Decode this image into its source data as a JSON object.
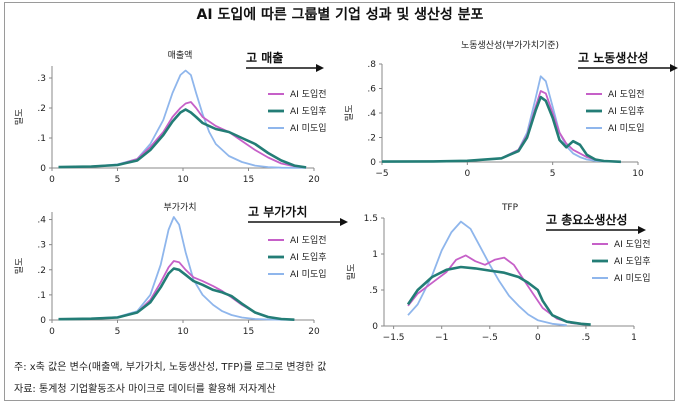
{
  "title": "AI 도입에 따른 그룹별 기업 성과 및 생산성 분포",
  "note": "주: x축 값은 변수(매출액, 부가가치, 노동생산성, TFP)를 로그로 변경한 값",
  "source": "자료: 통계청 기업활동조사 마이크로 데이터를 활용해 저자계산",
  "colors": {
    "ai_before": "#c660c8",
    "ai_after": "#237d76",
    "no_ai": "#8fb6ec"
  },
  "legend": [
    "AI 도입전",
    "AI 도입후",
    "AI 미도입"
  ],
  "chart_data": [
    {
      "type": "line",
      "title": "매출액",
      "direction_label": "고 매출",
      "ylabel": "밀도",
      "xlim": [
        0,
        20
      ],
      "ylim": [
        0,
        0.34
      ],
      "xticks": [
        0,
        5,
        10,
        15,
        20
      ],
      "xtick_labels": [
        "0",
        "5",
        "10",
        "15",
        "20"
      ],
      "yticks": [
        0,
        0.1,
        0.2,
        0.3
      ],
      "ytick_labels": [
        "0",
        ".1",
        ".2",
        ".3"
      ],
      "series": [
        {
          "name": "AI 도입전",
          "color_key": "ai_before",
          "x": [
            0.5,
            3,
            5,
            6.5,
            7.5,
            8.5,
            9.2,
            9.8,
            10.2,
            10.6,
            11,
            11.5,
            12.5,
            13.5,
            14.5,
            15.5,
            16.5,
            17.5,
            18.5,
            19.4
          ],
          "y": [
            0.003,
            0.005,
            0.01,
            0.03,
            0.07,
            0.12,
            0.17,
            0.2,
            0.215,
            0.22,
            0.2,
            0.17,
            0.14,
            0.12,
            0.09,
            0.06,
            0.035,
            0.015,
            0.006,
            0.002
          ]
        },
        {
          "name": "AI 도입후",
          "color_key": "ai_after",
          "x": [
            0.5,
            3,
            5,
            6.5,
            7.5,
            8.5,
            9.2,
            9.8,
            10.2,
            10.6,
            11,
            11.5,
            12.5,
            13.5,
            14.5,
            15.5,
            16.5,
            17.5,
            18.5,
            19.4
          ],
          "y": [
            0.003,
            0.005,
            0.01,
            0.025,
            0.06,
            0.11,
            0.155,
            0.185,
            0.195,
            0.185,
            0.17,
            0.15,
            0.13,
            0.12,
            0.1,
            0.08,
            0.05,
            0.025,
            0.008,
            0.002
          ]
        },
        {
          "name": "AI 미도입",
          "color_key": "no_ai",
          "x": [
            0.5,
            3,
            5,
            6.5,
            7.5,
            8.5,
            9.2,
            9.8,
            10.2,
            10.6,
            11,
            11.5,
            12,
            12.5,
            13.5,
            14.5,
            15.5,
            16.5,
            17.5,
            18.5,
            19.4
          ],
          "y": [
            0.003,
            0.005,
            0.012,
            0.03,
            0.08,
            0.16,
            0.25,
            0.31,
            0.325,
            0.31,
            0.25,
            0.18,
            0.12,
            0.08,
            0.04,
            0.02,
            0.008,
            0.003,
            0.001,
            0.0005,
            0.0002
          ]
        }
      ]
    },
    {
      "type": "line",
      "title": "노동생산성(부가가치기준)",
      "direction_label": "고 노동생산성",
      "ylabel": "밀도",
      "xlim": [
        -5,
        10
      ],
      "ylim": [
        0,
        0.8
      ],
      "xticks": [
        -5,
        0,
        5,
        10
      ],
      "xtick_labels": [
        "−5",
        "0",
        "5",
        "10"
      ],
      "yticks": [
        0,
        0.2,
        0.4,
        0.6,
        0.8
      ],
      "ytick_labels": [
        "0",
        ".2",
        ".4",
        ".6",
        ".8"
      ],
      "series": [
        {
          "name": "AI 도입전",
          "color_key": "ai_before",
          "x": [
            -5,
            -2,
            0,
            2,
            3,
            3.5,
            4,
            4.3,
            4.6,
            5,
            5.4,
            5.8,
            6.2,
            6.6,
            7,
            7.5,
            8,
            9
          ],
          "y": [
            0.003,
            0.005,
            0.01,
            0.03,
            0.1,
            0.22,
            0.45,
            0.58,
            0.56,
            0.4,
            0.24,
            0.15,
            0.1,
            0.07,
            0.04,
            0.02,
            0.008,
            0.002
          ]
        },
        {
          "name": "AI 도입후",
          "color_key": "ai_after",
          "x": [
            -5,
            -2,
            0,
            2,
            3,
            3.5,
            4,
            4.3,
            4.6,
            5,
            5.4,
            5.8,
            6.2,
            6.6,
            7,
            7.5,
            8,
            9
          ],
          "y": [
            0.003,
            0.005,
            0.01,
            0.03,
            0.09,
            0.2,
            0.42,
            0.53,
            0.5,
            0.36,
            0.18,
            0.12,
            0.17,
            0.14,
            0.06,
            0.02,
            0.008,
            0.002
          ]
        },
        {
          "name": "AI 미도입",
          "color_key": "no_ai",
          "x": [
            -5,
            -2,
            0,
            2,
            3,
            3.5,
            4,
            4.3,
            4.6,
            5,
            5.4,
            5.8,
            6.2,
            6.6,
            7,
            7.5,
            8,
            9
          ],
          "y": [
            0.003,
            0.005,
            0.01,
            0.03,
            0.1,
            0.24,
            0.52,
            0.7,
            0.66,
            0.45,
            0.24,
            0.13,
            0.07,
            0.04,
            0.02,
            0.01,
            0.005,
            0.002
          ]
        }
      ]
    },
    {
      "type": "line",
      "title": "부가가치",
      "direction_label": "고 부가가치",
      "ylabel": "밀도",
      "xlim": [
        0,
        20
      ],
      "ylim": [
        0,
        0.43
      ],
      "xticks": [
        0,
        5,
        10,
        15,
        20
      ],
      "xtick_labels": [
        "0",
        "5",
        "10",
        "15",
        "20"
      ],
      "yticks": [
        0,
        0.1,
        0.2,
        0.3,
        0.4
      ],
      "ytick_labels": [
        "0",
        ".1",
        ".2",
        ".3",
        ".4"
      ],
      "series": [
        {
          "name": "AI 도입전",
          "color_key": "ai_before",
          "x": [
            0.5,
            3,
            5,
            6.5,
            7.5,
            8.3,
            8.9,
            9.3,
            9.7,
            10.2,
            10.8,
            11.5,
            12.3,
            13,
            13.7,
            14.5,
            15.5,
            16.5,
            17.5,
            18.5
          ],
          "y": [
            0.003,
            0.005,
            0.01,
            0.03,
            0.08,
            0.15,
            0.21,
            0.235,
            0.23,
            0.2,
            0.17,
            0.155,
            0.135,
            0.115,
            0.09,
            0.06,
            0.03,
            0.012,
            0.004,
            0.001
          ]
        },
        {
          "name": "AI 도입후",
          "color_key": "ai_after",
          "x": [
            0.5,
            3,
            5,
            6.5,
            7.5,
            8.3,
            8.9,
            9.3,
            9.7,
            10.2,
            10.8,
            11.5,
            12.3,
            13,
            13.7,
            14.5,
            15.5,
            16.5,
            17.5,
            18.5
          ],
          "y": [
            0.003,
            0.005,
            0.01,
            0.03,
            0.07,
            0.13,
            0.185,
            0.205,
            0.2,
            0.18,
            0.155,
            0.14,
            0.12,
            0.11,
            0.095,
            0.065,
            0.03,
            0.012,
            0.004,
            0.001
          ]
        },
        {
          "name": "AI 미도입",
          "color_key": "no_ai",
          "x": [
            0.5,
            3,
            5,
            6.5,
            7.5,
            8.3,
            8.9,
            9.3,
            9.7,
            10.2,
            10.8,
            11.5,
            12.3,
            13,
            13.7,
            14.5,
            15.5,
            16.5,
            17.5,
            18.5
          ],
          "y": [
            0.003,
            0.005,
            0.012,
            0.035,
            0.1,
            0.22,
            0.36,
            0.41,
            0.38,
            0.27,
            0.16,
            0.1,
            0.06,
            0.035,
            0.02,
            0.01,
            0.004,
            0.002,
            0.001,
            0.0005
          ]
        }
      ]
    },
    {
      "type": "line",
      "title": "TFP",
      "direction_label": "고 총요소생산성",
      "ylabel": "밀도",
      "xlim": [
        -1.6,
        1
      ],
      "ylim": [
        0,
        1.5
      ],
      "xticks": [
        -1.5,
        -1,
        -0.5,
        0,
        0.5,
        1
      ],
      "xtick_labels": [
        "−1.5",
        "−1",
        "−.5",
        "0",
        ".5",
        "1"
      ],
      "yticks": [
        0,
        0.5,
        1,
        1.5
      ],
      "ytick_labels": [
        "0",
        ".5",
        "1",
        "1.5"
      ],
      "series": [
        {
          "name": "AI 도입전",
          "color_key": "ai_before",
          "x": [
            -1.35,
            -1.25,
            -1.1,
            -0.95,
            -0.85,
            -0.75,
            -0.65,
            -0.55,
            -0.45,
            -0.35,
            -0.25,
            -0.15,
            -0.05,
            0.05,
            0.2,
            0.35,
            0.5
          ],
          "y": [
            0.28,
            0.45,
            0.6,
            0.75,
            0.92,
            0.98,
            0.9,
            0.85,
            0.92,
            0.95,
            0.85,
            0.65,
            0.45,
            0.25,
            0.1,
            0.04,
            0.02
          ]
        },
        {
          "name": "AI 도입후",
          "color_key": "ai_after",
          "x": [
            -1.35,
            -1.25,
            -1.1,
            -0.95,
            -0.8,
            -0.65,
            -0.5,
            -0.35,
            -0.2,
            -0.1,
            0,
            0.05,
            0.15,
            0.3,
            0.45,
            0.55
          ],
          "y": [
            0.3,
            0.5,
            0.68,
            0.78,
            0.82,
            0.8,
            0.77,
            0.74,
            0.68,
            0.6,
            0.5,
            0.35,
            0.15,
            0.06,
            0.03,
            0.02
          ]
        },
        {
          "name": "AI 미도입",
          "color_key": "no_ai",
          "x": [
            -1.35,
            -1.25,
            -1.1,
            -1,
            -0.9,
            -0.8,
            -0.7,
            -0.6,
            -0.5,
            -0.4,
            -0.3,
            -0.2,
            -0.1,
            0,
            0.15,
            0.3
          ],
          "y": [
            0.15,
            0.3,
            0.7,
            1.05,
            1.3,
            1.45,
            1.35,
            1.1,
            0.85,
            0.62,
            0.42,
            0.28,
            0.16,
            0.08,
            0.03,
            0.01
          ]
        }
      ]
    }
  ]
}
